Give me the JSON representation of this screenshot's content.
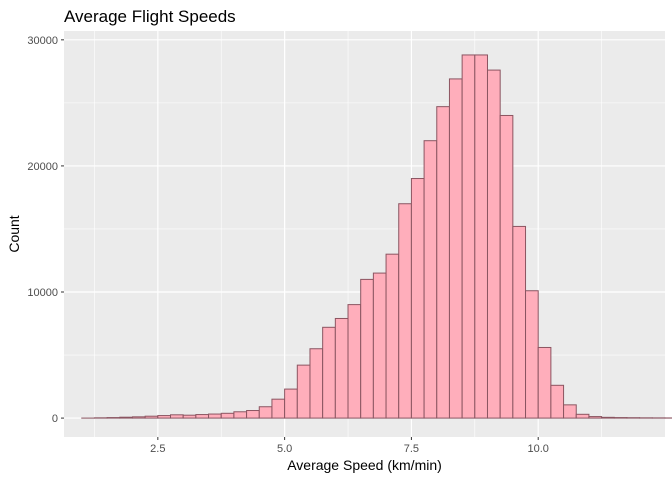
{
  "chart_data": {
    "type": "histogram",
    "title": "Average Flight Speeds",
    "xlabel": "Average Speed (km/min)",
    "ylabel": "Count",
    "xlim": [
      0.65,
      12.5
    ],
    "ylim": [
      -1500,
      30700
    ],
    "xticks": [
      2.5,
      5.0,
      7.5,
      10.0
    ],
    "xtick_labels": [
      "2.5",
      "5.0",
      "7.5",
      "10.0"
    ],
    "yticks": [
      0,
      10000,
      20000,
      30000
    ],
    "ytick_labels": [
      "0",
      "10000",
      "20000",
      "30000"
    ],
    "bin_width": 0.25,
    "bin_start": 1.0,
    "counts": [
      0,
      20,
      40,
      70,
      100,
      150,
      200,
      260,
      230,
      280,
      320,
      380,
      500,
      600,
      900,
      1500,
      2300,
      4200,
      5500,
      7200,
      7900,
      9000,
      11000,
      11500,
      13000,
      17000,
      19000,
      22000,
      24700,
      26900,
      28800,
      28800,
      27600,
      24000,
      15200,
      10100,
      5600,
      2600,
      1050,
      300,
      120,
      60,
      40,
      30,
      20,
      15,
      12,
      10,
      8,
      6,
      5,
      4,
      3,
      2
    ],
    "bar_fill": "#ffaebb",
    "bar_outline": "#8b5561",
    "panel_background": "#ebebeb",
    "grid_color": "#ffffff"
  }
}
